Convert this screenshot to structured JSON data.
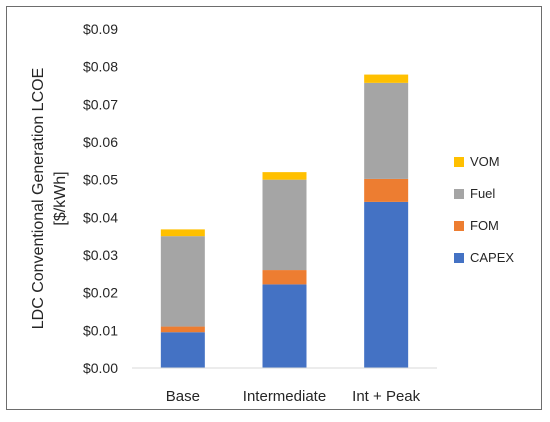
{
  "chart_data": {
    "type": "bar",
    "stacked": true,
    "categories": [
      "Base",
      "Intermediate",
      "Int + Peak"
    ],
    "series": [
      {
        "name": "CAPEX",
        "color": "#4472c4",
        "values": [
          0.0095,
          0.0222,
          0.0441
        ]
      },
      {
        "name": "FOM",
        "color": "#ed7d31",
        "values": [
          0.0015,
          0.0038,
          0.0061
        ]
      },
      {
        "name": "Fuel",
        "color": "#a5a5a5",
        "values": [
          0.024,
          0.024,
          0.0255
        ]
      },
      {
        "name": "VOM",
        "color": "#ffc000",
        "values": [
          0.0018,
          0.002,
          0.0022
        ]
      }
    ],
    "ylabel": "LDC Conventional Generation LCOE\n[$/kWh]",
    "ylim": [
      0,
      0.09
    ],
    "yticks": [
      0,
      0.01,
      0.02,
      0.03,
      0.04,
      0.05,
      0.06,
      0.07,
      0.08,
      0.09
    ],
    "ytick_labels": [
      "$0.00",
      "$0.01",
      "$0.02",
      "$0.03",
      "$0.04",
      "$0.05",
      "$0.06",
      "$0.07",
      "$0.08",
      "$0.09"
    ],
    "legend_order": [
      "VOM",
      "Fuel",
      "FOM",
      "CAPEX"
    ],
    "legend_position": "right",
    "grid": false
  }
}
